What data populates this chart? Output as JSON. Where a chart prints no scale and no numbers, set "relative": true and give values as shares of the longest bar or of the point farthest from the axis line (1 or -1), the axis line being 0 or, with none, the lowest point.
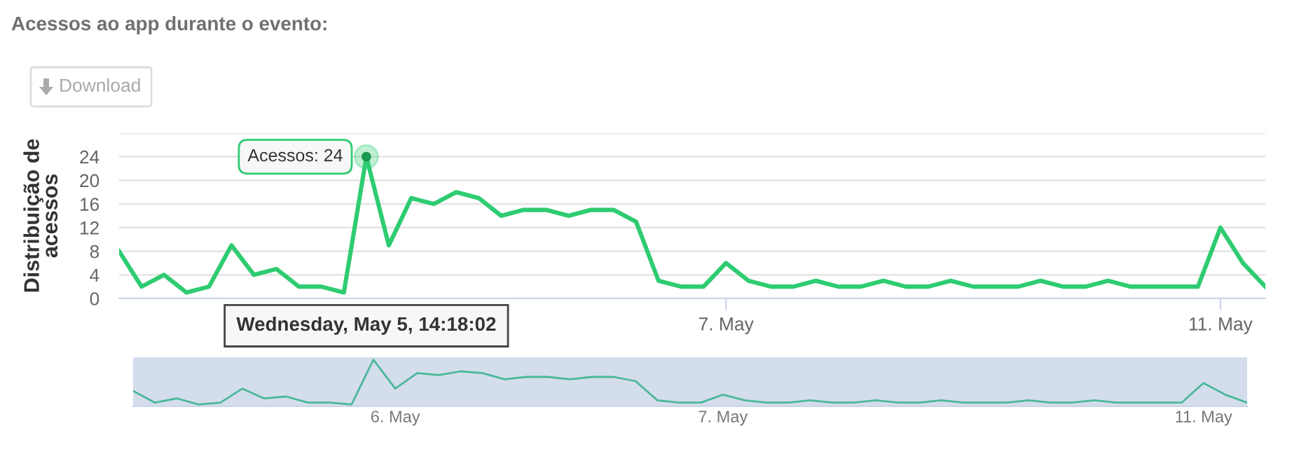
{
  "chart_data": [
    {
      "type": "line",
      "title": "Acessos ao app durante o evento:",
      "ylabel": "Distribuição de acessos",
      "categories": [
        null,
        null,
        null,
        null,
        null,
        null,
        null,
        null,
        null,
        null,
        null,
        null,
        null,
        null,
        null,
        null,
        null,
        null,
        null,
        null,
        null,
        null,
        null,
        null,
        null,
        null,
        null,
        "7. May",
        null,
        null,
        null,
        null,
        null,
        null,
        null,
        null,
        null,
        null,
        null,
        null,
        null,
        null,
        null,
        null,
        null,
        null,
        null,
        null,
        null,
        "11. May",
        null,
        null
      ],
      "series": [
        {
          "color": "#2ecc71",
          "values": [
            8,
            2,
            4,
            1,
            2,
            9,
            4,
            5,
            2,
            2,
            1,
            24,
            9,
            17,
            16,
            18,
            17,
            14,
            15,
            15,
            14,
            15,
            15,
            13,
            3,
            2,
            2,
            6,
            3,
            2,
            2,
            3,
            2,
            2,
            3,
            2,
            2,
            3,
            2,
            2,
            2,
            3,
            2,
            2,
            3,
            2,
            2,
            2,
            2,
            12,
            6,
            2
          ]
        }
      ],
      "ylim": [
        0,
        28
      ],
      "yticks": [
        0,
        4,
        8,
        12,
        16,
        20,
        24,
        {
          "value": 28,
          "label": null
        }
      ],
      "grid": "y",
      "marker": "none",
      "line_style": "solid",
      "annotations": [
        "Download",
        "Acessos: 24",
        "Wednesday, May 5, 14:18:02"
      ]
    },
    {
      "type": "line",
      "relative": true,
      "categories": [
        null,
        null,
        null,
        null,
        null,
        null,
        null,
        null,
        null,
        null,
        null,
        null,
        "6. May",
        null,
        null,
        null,
        null,
        null,
        null,
        null,
        null,
        null,
        null,
        null,
        null,
        null,
        null,
        "7. May",
        null,
        null,
        null,
        null,
        null,
        null,
        null,
        null,
        null,
        null,
        null,
        null,
        null,
        null,
        null,
        null,
        null,
        null,
        null,
        null,
        null,
        "11. May",
        null,
        null
      ],
      "series": [
        {
          "color": "#4bb89a",
          "values": [
            0.33,
            0.08,
            0.17,
            0.04,
            0.08,
            0.38,
            0.17,
            0.21,
            0.08,
            0.08,
            0.04,
            1,
            0.38,
            0.71,
            0.67,
            0.75,
            0.71,
            0.58,
            0.63,
            0.63,
            0.58,
            0.63,
            0.63,
            0.54,
            0.13,
            0.08,
            0.08,
            0.25,
            0.13,
            0.08,
            0.08,
            0.13,
            0.08,
            0.08,
            0.13,
            0.08,
            0.08,
            0.13,
            0.08,
            0.08,
            0.08,
            0.13,
            0.08,
            0.08,
            0.13,
            0.08,
            0.08,
            0.08,
            0.08,
            0.5,
            0.25,
            0.08
          ]
        }
      ],
      "marker": "none",
      "line_style": "solid"
    }
  ]
}
